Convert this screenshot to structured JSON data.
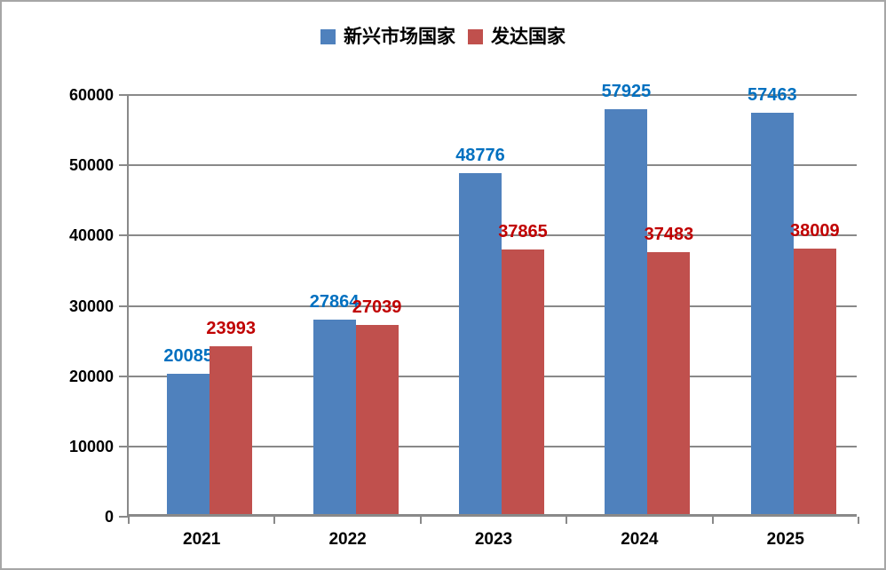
{
  "legend": [
    {
      "label": "新兴市场国家",
      "color": "#4f81bd"
    },
    {
      "label": "发达国家",
      "color": "#c0504d"
    }
  ],
  "chart_data": {
    "type": "bar",
    "categories": [
      "2021",
      "2022",
      "2023",
      "2024",
      "2025"
    ],
    "series": [
      {
        "name": "新兴市场国家",
        "bar_color": "#4f81bd",
        "label_color": "#0070c0",
        "values": [
          20085,
          27864,
          48776,
          57925,
          57463
        ]
      },
      {
        "name": "发达国家",
        "bar_color": "#c0504d",
        "label_color": "#c00000",
        "values": [
          23993,
          27039,
          37865,
          37483,
          38009
        ]
      }
    ],
    "title": "",
    "xlabel": "",
    "ylabel": "",
    "ylim": [
      0,
      60000
    ],
    "ytick_step": 10000,
    "yticks": [
      "0",
      "10000",
      "20000",
      "30000",
      "40000",
      "50000",
      "60000"
    ],
    "grid": true,
    "legend_position": "top-center",
    "data_labels": true,
    "gridline_color": "#898989",
    "axis_color": "#898989",
    "border_color": "#a6a6a6"
  }
}
